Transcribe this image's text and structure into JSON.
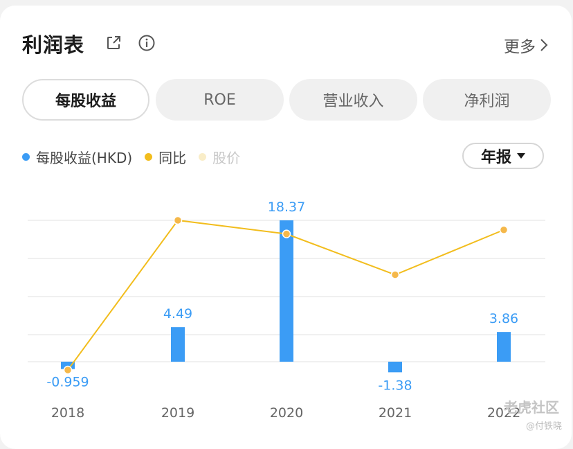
{
  "header": {
    "title": "利润表",
    "more_label": "更多"
  },
  "tabs": [
    {
      "label": "每股收益",
      "active": true
    },
    {
      "label": "ROE",
      "active": false
    },
    {
      "label": "营业收入",
      "active": false
    },
    {
      "label": "净利润",
      "active": false
    }
  ],
  "legend": [
    {
      "label": "每股收益(HKD)",
      "color": "#3b9cf5",
      "enabled": true
    },
    {
      "label": "同比",
      "color": "#f2bd1d",
      "enabled": true
    },
    {
      "label": "股价",
      "color": "#f9edc8",
      "enabled": false
    }
  ],
  "period_selector": {
    "label": "年报"
  },
  "chart_data": {
    "type": "bar",
    "categories": [
      "2018",
      "2019",
      "2020",
      "2021",
      "2022"
    ],
    "series": [
      {
        "name": "每股收益(HKD)",
        "type": "bar",
        "color": "#3b9cf5",
        "values": [
          -0.959,
          4.49,
          18.37,
          -1.38,
          3.86
        ],
        "labels": [
          "-0.959",
          "4.49",
          "18.37",
          "-1.38",
          "3.86"
        ]
      },
      {
        "name": "同比",
        "type": "line",
        "color": "#f2bd1d",
        "values": [
          -0.1,
          1.0,
          0.9,
          0.6,
          0.93
        ]
      }
    ],
    "ylim": [
      -1.0,
      18.37
    ],
    "grid": true
  },
  "watermark": {
    "brand": "老虎社区",
    "author": "@付铁晓"
  }
}
